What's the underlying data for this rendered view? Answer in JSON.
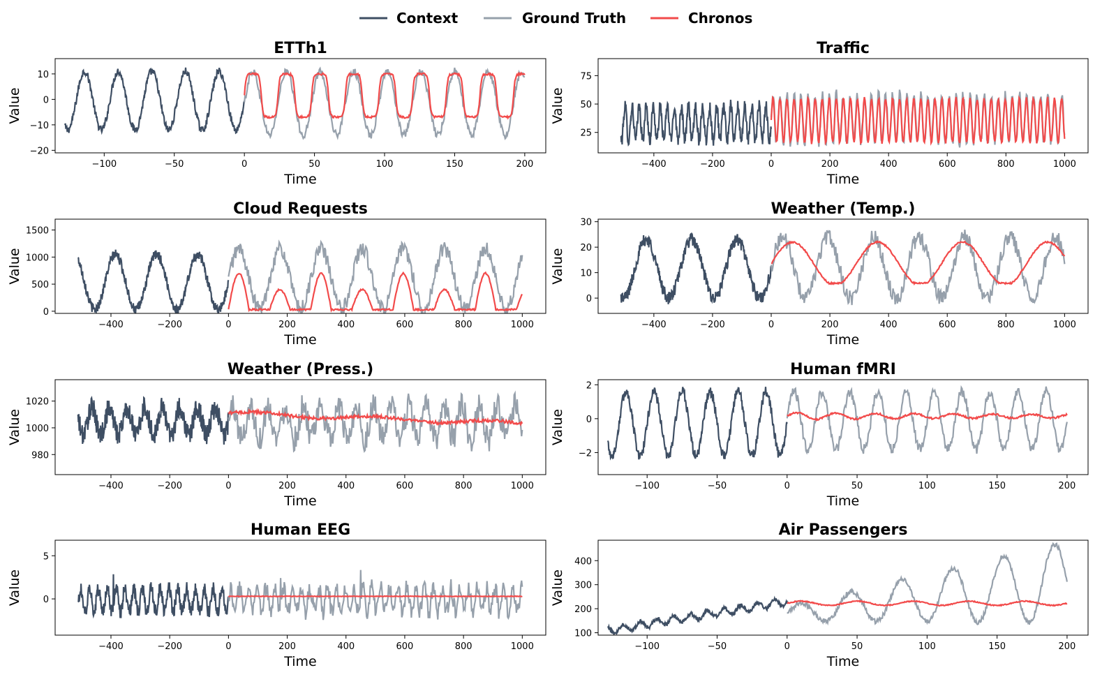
{
  "legend": [
    {
      "label": "Context",
      "color": "#3e4e63"
    },
    {
      "label": "Ground Truth",
      "color": "#96a0ab"
    },
    {
      "label": "Chronos",
      "color": "#f24a4a"
    }
  ],
  "chart_data": [
    {
      "type": "line",
      "title": "ETTh1",
      "xlabel": "Time",
      "ylabel": "Value",
      "xlim": [
        -135,
        215
      ],
      "ylim": [
        -21,
        16
      ],
      "xticks": [
        -100,
        -50,
        0,
        50,
        100,
        150,
        200
      ],
      "yticks": [
        -20,
        -10,
        0,
        10
      ],
      "context": {
        "x_start": -128,
        "x_end": 0,
        "period": 24,
        "low": -12,
        "high": 11,
        "noise": 1.5,
        "spike": 0
      },
      "ground_truth": {
        "x_start": 0,
        "x_end": 200,
        "period": 24,
        "low": -14,
        "high": 11,
        "noise": 1.5,
        "spike": 0
      },
      "forecast": {
        "x_start": 0,
        "x_end": 200,
        "period": 24,
        "low": -7,
        "high": 10,
        "noise": 0.4,
        "shape": "square"
      }
    },
    {
      "type": "line",
      "title": "Traffic",
      "xlabel": "Time",
      "ylabel": "Value",
      "xlim": [
        -590,
        1080
      ],
      "ylim": [
        7,
        90
      ],
      "xticks": [
        -400,
        -200,
        0,
        200,
        400,
        600,
        800,
        1000
      ],
      "yticks": [
        25,
        50,
        75
      ],
      "context": {
        "x_start": -512,
        "x_end": 0,
        "period": 24,
        "low": 18,
        "high": 48,
        "noise": 6,
        "spike": 0
      },
      "ground_truth": {
        "x_start": 0,
        "x_end": 1000,
        "period": 24,
        "low": 16,
        "high": 58,
        "noise": 5,
        "spike": 0
      },
      "forecast": {
        "x_start": 0,
        "x_end": 1000,
        "period": 24,
        "low": 16,
        "high": 55,
        "noise": 1.5,
        "shape": "spiky"
      }
    },
    {
      "type": "line",
      "title": "Cloud Requests",
      "xlabel": "Time",
      "ylabel": "Value",
      "xlim": [
        -590,
        1080
      ],
      "ylim": [
        -40,
        1700
      ],
      "xticks": [
        -400,
        -200,
        0,
        200,
        400,
        600,
        800,
        1000
      ],
      "yticks": [
        0,
        500,
        1000,
        1500
      ],
      "context": {
        "x_start": -512,
        "x_end": 0,
        "period": 140,
        "low": 30,
        "high": 1050,
        "noise": 90,
        "spike": 0
      },
      "ground_truth": {
        "x_start": 0,
        "x_end": 1000,
        "period": 140,
        "low": 40,
        "high": 1150,
        "noise": 140,
        "spike": 0
      },
      "forecast": {
        "x_start": 0,
        "x_end": 1000,
        "period": 140,
        "low": 30,
        "high": 700,
        "noise": 15,
        "shape": "alternate"
      }
    },
    {
      "type": "line",
      "title": "Weather (Temp.)",
      "xlabel": "Time",
      "ylabel": "Value",
      "xlim": [
        -590,
        1080
      ],
      "ylim": [
        -6,
        31
      ],
      "xticks": [
        -400,
        -200,
        0,
        200,
        400,
        600,
        800,
        1000
      ],
      "yticks": [
        0,
        10,
        20,
        30
      ],
      "context": {
        "x_start": -512,
        "x_end": 0,
        "period": 155,
        "low": 0,
        "high": 23,
        "noise": 2.5,
        "spike": 0
      },
      "ground_truth": {
        "x_start": 0,
        "x_end": 1000,
        "period": 155,
        "low": 0,
        "high": 24,
        "noise": 3,
        "spike": 0
      },
      "forecast": {
        "x_start": 0,
        "x_end": 1000,
        "period": 290,
        "low": 5,
        "high": 22,
        "noise": 0.3,
        "shape": "temp"
      }
    },
    {
      "type": "line",
      "title": "Weather (Press.)",
      "xlabel": "Time",
      "ylabel": "Value",
      "xlim": [
        -590,
        1080
      ],
      "ylim": [
        965,
        1036
      ],
      "xticks": [
        -400,
        -200,
        0,
        200,
        400,
        600,
        800,
        1000
      ],
      "yticks": [
        980,
        1000,
        1020
      ],
      "context": {
        "x_start": -512,
        "x_end": 0,
        "period": 60,
        "low": 995,
        "high": 1015,
        "noise": 8,
        "spike": 0
      },
      "ground_truth": {
        "x_start": 0,
        "x_end": 1000,
        "period": 60,
        "low": 992,
        "high": 1016,
        "noise": 10,
        "spike": 0
      },
      "forecast": {
        "x_start": 0,
        "x_end": 1000,
        "period": 400,
        "low": 1003,
        "high": 1011,
        "noise": 1.2,
        "shape": "flat-decay"
      }
    },
    {
      "type": "line",
      "title": "Human fMRI",
      "xlabel": "Time",
      "ylabel": "Value",
      "xlim": [
        -135,
        215
      ],
      "ylim": [
        -3.3,
        2.3
      ],
      "xticks": [
        -100,
        -50,
        0,
        50,
        100,
        150,
        200
      ],
      "yticks": [
        -2,
        0,
        2
      ],
      "context": {
        "x_start": -128,
        "x_end": 0,
        "period": 20,
        "low": -2.2,
        "high": 1.6,
        "noise": 0.3,
        "spike": 0
      },
      "ground_truth": {
        "x_start": 0,
        "x_end": 200,
        "period": 20,
        "low": -1.8,
        "high": 1.6,
        "noise": 0.3,
        "spike": 0
      },
      "forecast": {
        "x_start": 0,
        "x_end": 200,
        "period": 28,
        "low": -0.1,
        "high": 0.4,
        "noise": 0.05,
        "shape": "damped"
      }
    },
    {
      "type": "line",
      "title": "Human EEG",
      "xlabel": "Time",
      "ylabel": "Value",
      "xlim": [
        -590,
        1080
      ],
      "ylim": [
        -4.2,
        6.8
      ],
      "xticks": [
        -400,
        -200,
        0,
        200,
        400,
        600,
        800,
        1000
      ],
      "yticks": [
        0,
        5
      ],
      "context": {
        "x_start": -512,
        "x_end": 0,
        "period": 30,
        "low": -1.5,
        "high": 1.2,
        "noise": 0.8,
        "spike": 1
      },
      "ground_truth": {
        "x_start": 0,
        "x_end": 1000,
        "period": 30,
        "low": -1.5,
        "high": 1.3,
        "noise": 1.0,
        "spike": 2
      },
      "forecast": {
        "x_start": 0,
        "x_end": 1000,
        "period": 100,
        "low": 0.2,
        "high": 0.4,
        "noise": 0.03,
        "shape": "flat"
      }
    },
    {
      "type": "line",
      "title": "Air Passengers",
      "xlabel": "Time",
      "ylabel": "Value",
      "xlim": [
        -135,
        215
      ],
      "ylim": [
        90,
        485
      ],
      "xticks": [
        -100,
        -50,
        0,
        50,
        100,
        150,
        200
      ],
      "yticks": [
        100,
        200,
        300,
        400
      ],
      "context": {
        "x_start": -128,
        "x_end": 0,
        "period": 12,
        "low": 110,
        "high": 230,
        "noise": 8,
        "spike": 0
      },
      "ground_truth": {
        "x_start": 0,
        "x_end": 200,
        "period": 36,
        "low": 180,
        "high": 470,
        "noise": 10,
        "spike": 0
      },
      "forecast": {
        "x_start": 0,
        "x_end": 200,
        "period": 40,
        "low": 205,
        "high": 240,
        "noise": 2,
        "shape": "air"
      }
    }
  ]
}
